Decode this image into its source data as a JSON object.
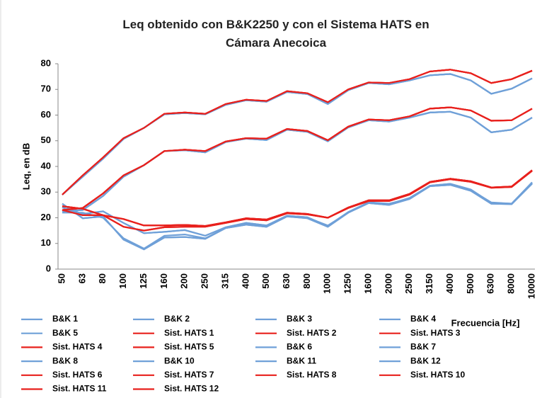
{
  "chart_data": {
    "type": "line",
    "title": "Leq obtenido con B&K2250 y con el Sistema HATS en Cámara Anecoica",
    "y_label": "Leq, en dB",
    "x_label": "Frecuencia [Hz]",
    "categories": [
      "50",
      "63",
      "80",
      "100",
      "125",
      "160",
      "200",
      "250",
      "315",
      "400",
      "500",
      "630",
      "800",
      "1000",
      "1250",
      "1600",
      "2000",
      "2500",
      "3150",
      "4000",
      "5000",
      "6300",
      "8000",
      "10000"
    ],
    "ylim": [
      0,
      80
    ],
    "yticks": [
      0,
      10,
      20,
      30,
      40,
      50,
      60,
      70,
      80
    ],
    "grid": false,
    "series": [
      {
        "name": "B&K 1",
        "color": "#6fa0d8",
        "values": [
          29,
          36,
          43,
          50.7,
          55,
          60.3,
          60.8,
          60.3,
          64,
          65.8,
          65.2,
          69,
          68.2,
          64.3,
          69.7,
          72.5,
          72,
          73.5,
          75.5,
          76,
          73.5,
          68.3,
          70.3,
          74.3
        ]
      },
      {
        "name": "B&K 2",
        "color": "#6fa0d8",
        "values": [
          22.5,
          23,
          28.5,
          36,
          40.5,
          46,
          46.3,
          45.5,
          49.5,
          50.8,
          50.3,
          54.3,
          53.5,
          49.8,
          55.2,
          58,
          57.5,
          59,
          61,
          61.3,
          59,
          53.3,
          54.3,
          59
        ]
      },
      {
        "name": "B&K 3",
        "color": "#6fa0d8",
        "values": [
          25.5,
          19.8,
          20.5,
          11.5,
          7.7,
          12.3,
          12.5,
          11.8,
          16,
          17.3,
          16.5,
          20.5,
          19.8,
          16.5,
          22,
          25.7,
          25,
          27.3,
          32.3,
          32.8,
          30.5,
          25.5,
          25.3,
          33.3
        ]
      },
      {
        "name": "B&K 4",
        "color": "#6fa0d8",
        "values": [
          24,
          21.5,
          22.5,
          18,
          14,
          14.5,
          15.2,
          13,
          16.3,
          18,
          17,
          20.8,
          20.2,
          16.8,
          22.2,
          26,
          25.3,
          27.7,
          32.5,
          33.2,
          31,
          25.8,
          25.5,
          33.8
        ]
      },
      {
        "name": "B&K 5",
        "color": "#6fa0d8",
        "values": [
          22,
          22,
          20,
          12,
          8,
          13,
          13.5,
          12,
          16,
          17.5,
          16.5,
          20.5,
          20,
          17,
          22,
          26,
          25.5,
          27.5,
          32.5,
          33,
          30.8,
          26,
          25.5,
          33.5
        ]
      },
      {
        "name": "Sist. HATS 1",
        "color": "#e8201c",
        "values": [
          29,
          36.5,
          43.5,
          51,
          55,
          60.5,
          61,
          60.5,
          64.3,
          66,
          65.5,
          69.3,
          68.5,
          65,
          70,
          72.7,
          72.5,
          74,
          77,
          77.7,
          76.3,
          72.5,
          74,
          77.3
        ]
      },
      {
        "name": "Sist. HATS 2",
        "color": "#e8201c",
        "values": [
          23,
          23.8,
          29.5,
          36.5,
          40.5,
          46,
          46.5,
          46,
          49.7,
          51,
          50.8,
          54.6,
          53.8,
          50.2,
          55.5,
          58.3,
          58,
          59.5,
          62.5,
          63,
          61.8,
          57.8,
          58,
          62.5
        ]
      },
      {
        "name": "Sist. HATS 3",
        "color": "#e8201c",
        "values": [
          24.5,
          23.5,
          21,
          19.5,
          17,
          17,
          17.2,
          16.8,
          18.2,
          19.8,
          19.3,
          22,
          21.5,
          20,
          24,
          26.8,
          26.8,
          29.3,
          34,
          35.2,
          34.2,
          31.8,
          32.2,
          38.5
        ]
      },
      {
        "name": "Sist. HATS 4",
        "color": "#e8201c",
        "values": [
          23,
          21,
          21,
          16.5,
          15,
          16.3,
          16.5,
          16.5,
          18,
          19.5,
          19,
          21.7,
          21.3,
          20,
          23.8,
          26.5,
          26.5,
          29,
          33.8,
          35,
          34,
          31.7,
          32,
          38.3
        ]
      },
      {
        "name": "Sist. HATS 5",
        "color": "#e8201c",
        "values": [
          29,
          36.5,
          43.5,
          51,
          55,
          60.5,
          61,
          60.5,
          64.3,
          66,
          65.5,
          69.3,
          68.5,
          65,
          70,
          72.7,
          72.5,
          74,
          77,
          77.7,
          76.3,
          72.5,
          74,
          77.3
        ]
      },
      {
        "name": "B&K 6",
        "color": "#6fa0d8",
        "values": [
          29,
          36,
          43,
          50.7,
          55,
          60.3,
          60.8,
          60.3,
          64,
          65.8,
          65.2,
          69,
          68.2,
          64.3,
          69.7,
          72.5,
          72,
          73.5,
          75.5,
          76,
          73.5,
          68.3,
          70.3,
          74.3
        ]
      },
      {
        "name": "B&K 7",
        "color": "#6fa0d8",
        "values": [
          22.5,
          23,
          28.5,
          36,
          40.5,
          46,
          46.3,
          45.5,
          49.5,
          50.8,
          50.3,
          54.3,
          53.5,
          49.8,
          55.2,
          58,
          57.5,
          59,
          61,
          61.3,
          59,
          53.3,
          54.3,
          59
        ]
      },
      {
        "name": "B&K 8",
        "color": "#6fa0d8",
        "values": [
          25.5,
          19.8,
          20.5,
          11.5,
          7.7,
          12.3,
          12.5,
          11.8,
          16,
          17.3,
          16.5,
          20.5,
          19.8,
          16.5,
          22,
          25.7,
          25,
          27.3,
          32.3,
          32.8,
          30.5,
          25.5,
          25.3,
          33.3
        ]
      },
      {
        "name": "B&K 10",
        "color": "#6fa0d8",
        "values": [
          29,
          36,
          43,
          50.7,
          55,
          60.3,
          60.8,
          60.3,
          64,
          65.8,
          65.2,
          69,
          68.2,
          64.3,
          69.7,
          72.5,
          72,
          73.5,
          75.5,
          76,
          73.5,
          68.3,
          70.3,
          74.3
        ]
      },
      {
        "name": "B&K 11",
        "color": "#6fa0d8",
        "values": [
          22.5,
          23,
          28.5,
          36,
          40.5,
          46,
          46.3,
          45.5,
          49.5,
          50.8,
          50.3,
          54.3,
          53.5,
          49.8,
          55.2,
          58,
          57.5,
          59,
          61,
          61.3,
          59,
          53.3,
          54.3,
          59
        ]
      },
      {
        "name": "B&K 12",
        "color": "#6fa0d8",
        "values": [
          24,
          21.5,
          22.5,
          18,
          14,
          14.5,
          15.2,
          13,
          16.3,
          18,
          17,
          20.8,
          20.2,
          16.8,
          22.2,
          26,
          25.3,
          27.7,
          32.5,
          33.2,
          31,
          25.8,
          25.5,
          33.8
        ]
      },
      {
        "name": "Sist. HATS 6",
        "color": "#e8201c",
        "values": [
          23,
          23.8,
          29.5,
          36.5,
          40.5,
          46,
          46.5,
          46,
          49.7,
          51,
          50.8,
          54.6,
          53.8,
          50.2,
          55.5,
          58.3,
          58,
          59.5,
          62.5,
          63,
          61.8,
          57.8,
          58,
          62.5
        ]
      },
      {
        "name": "Sist. HATS 7",
        "color": "#e8201c",
        "values": [
          24.5,
          23.5,
          21,
          19.5,
          17,
          17,
          17.2,
          16.8,
          18.2,
          19.8,
          19.3,
          22,
          21.5,
          20,
          24,
          26.8,
          26.8,
          29.3,
          34,
          35.2,
          34.2,
          31.8,
          32.2,
          38.5
        ]
      },
      {
        "name": "Sist. HATS 8",
        "color": "#e8201c",
        "values": [
          29,
          36.5,
          43.5,
          51,
          55,
          60.5,
          61,
          60.5,
          64.3,
          66,
          65.5,
          69.3,
          68.5,
          65,
          70,
          72.7,
          72.5,
          74,
          77,
          77.7,
          76.3,
          72.5,
          74,
          77.3
        ]
      },
      {
        "name": "Sist. HATS 10",
        "color": "#e8201c",
        "values": [
          23,
          23.8,
          29.5,
          36.5,
          40.5,
          46,
          46.5,
          46,
          49.7,
          51,
          50.8,
          54.6,
          53.8,
          50.2,
          55.5,
          58.3,
          58,
          59.5,
          62.5,
          63,
          61.8,
          57.8,
          58,
          62.5
        ]
      },
      {
        "name": "Sist. HATS 11",
        "color": "#e8201c",
        "values": [
          23,
          21,
          21,
          16.5,
          15,
          16.3,
          16.5,
          16.5,
          18,
          19.5,
          19,
          21.7,
          21.3,
          20,
          23.8,
          26.5,
          26.5,
          29,
          33.8,
          35,
          34,
          31.7,
          32,
          38.3
        ]
      },
      {
        "name": "Sist. HATS 12",
        "color": "#e8201c",
        "values": [
          24.5,
          23.5,
          21,
          19.5,
          17,
          17,
          17.2,
          16.8,
          18.2,
          19.8,
          19.3,
          22,
          21.5,
          20,
          24,
          26.8,
          26.8,
          29.3,
          34,
          35.2,
          34.2,
          31.8,
          32.2,
          38.5
        ]
      }
    ]
  }
}
